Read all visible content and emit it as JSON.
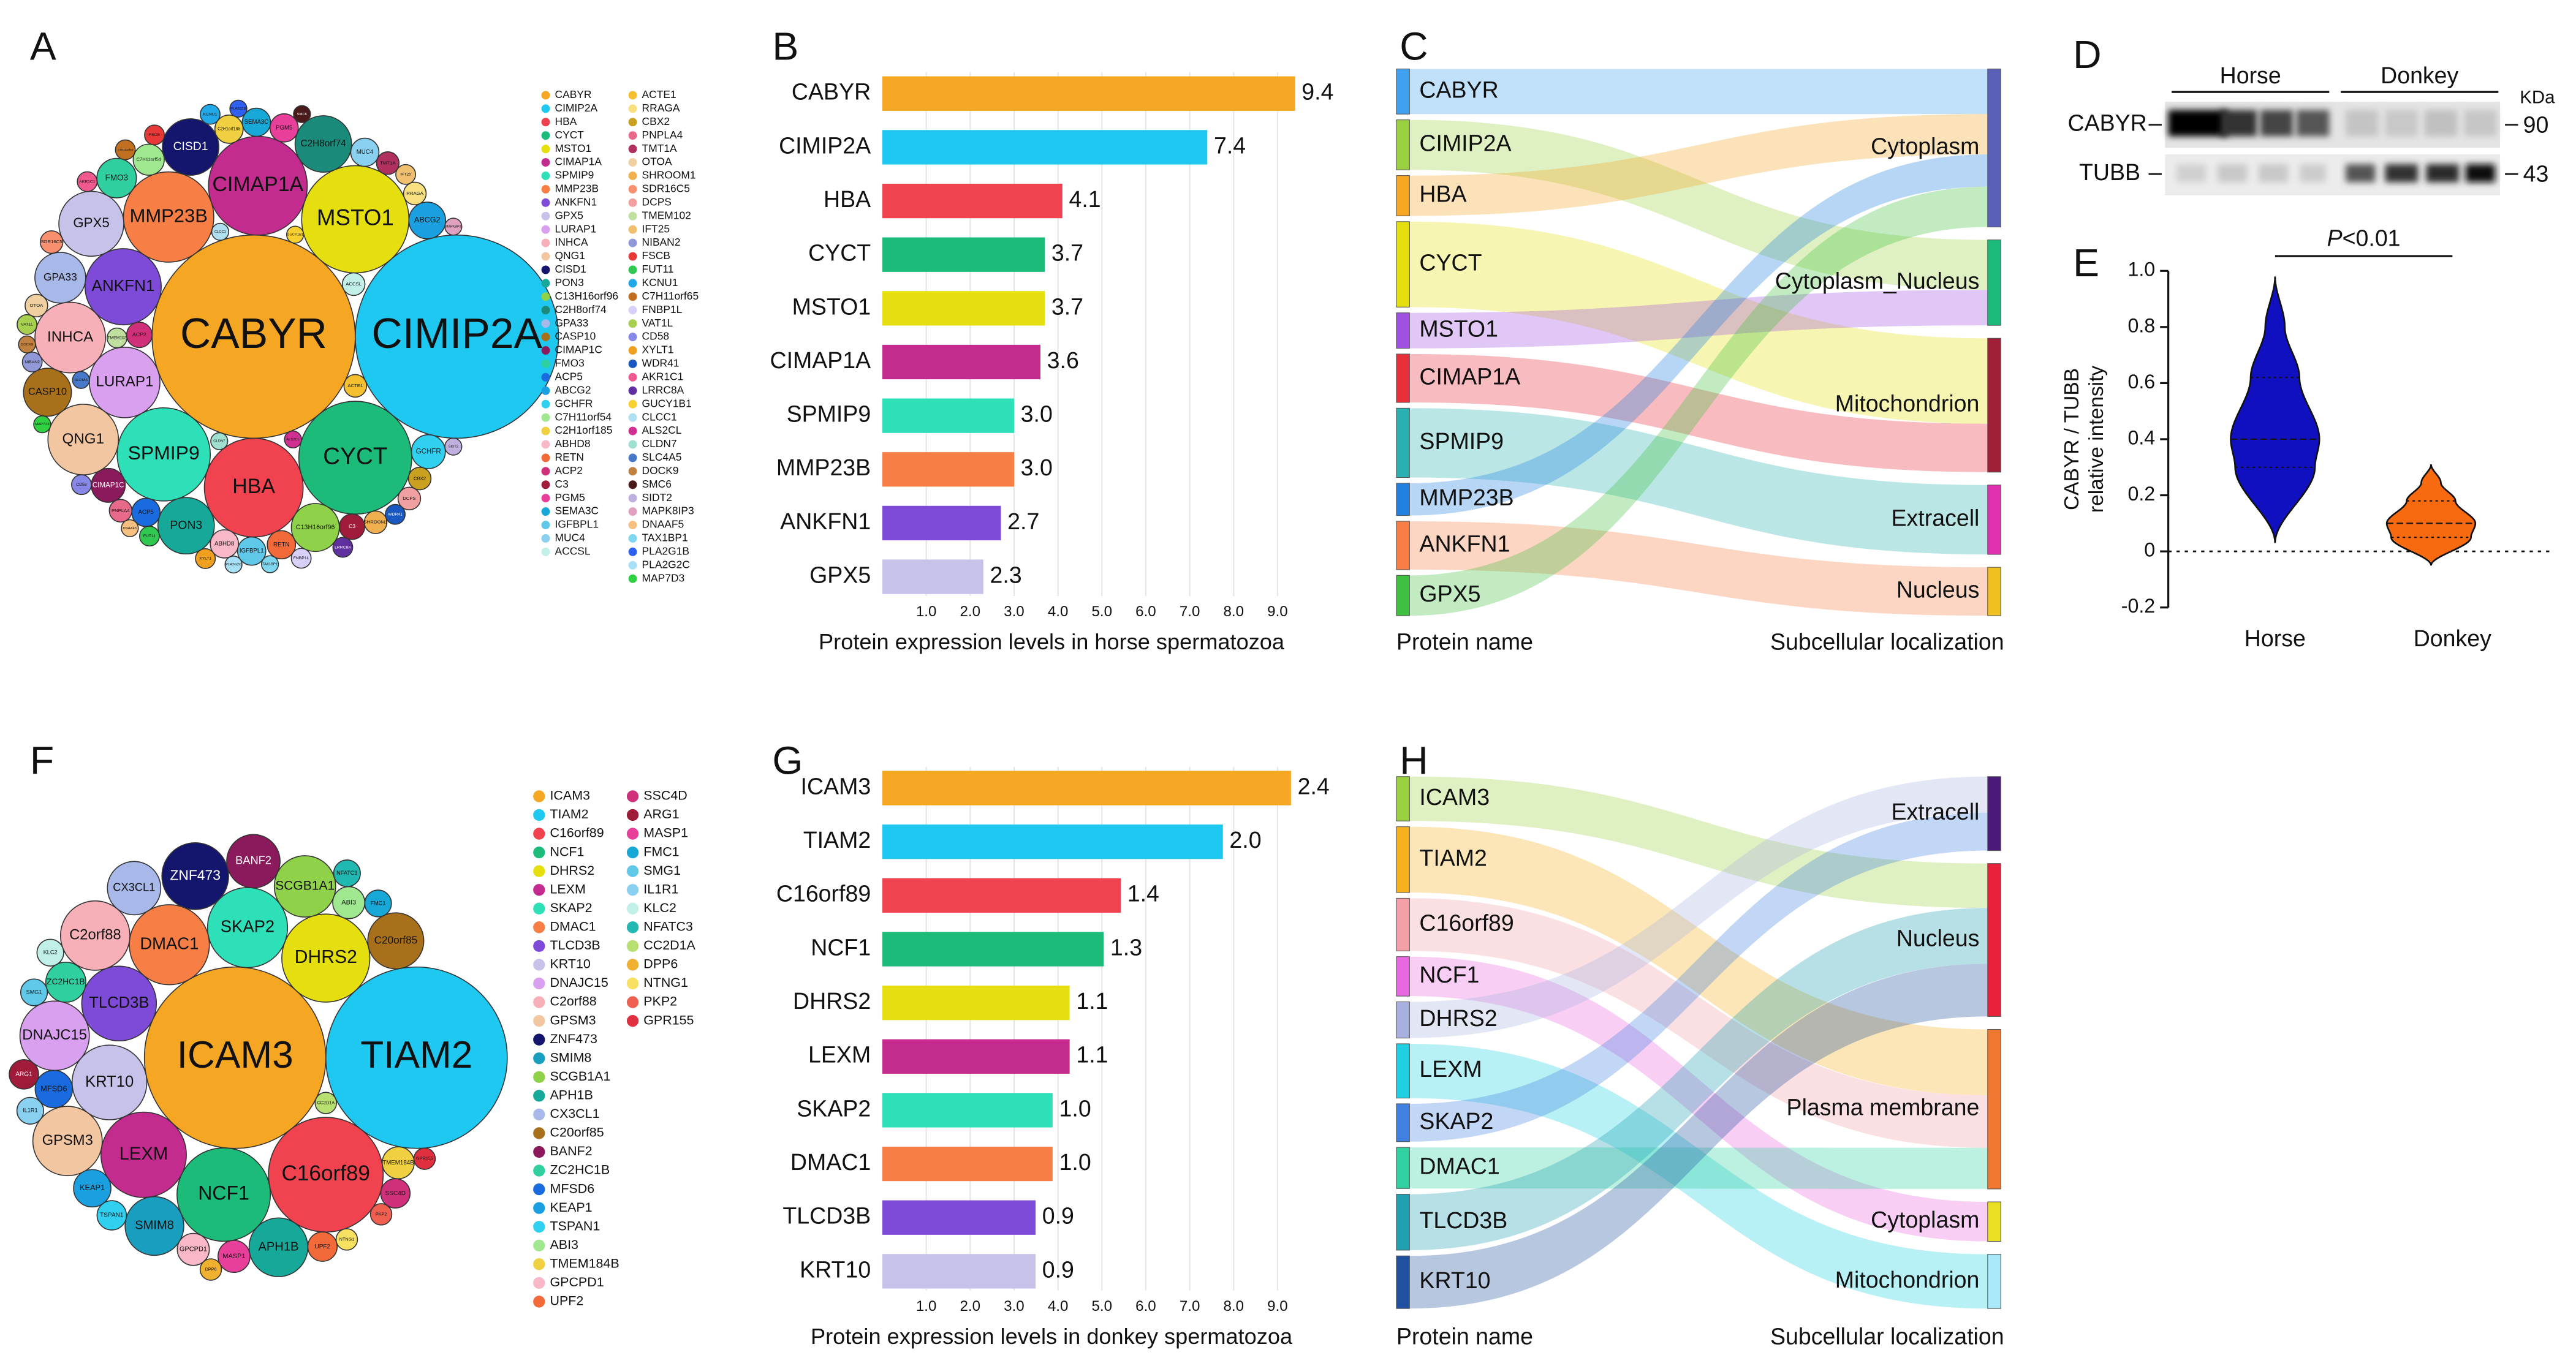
{
  "chart_data": [
    {
      "type": "bubble",
      "label": "A",
      "columns": [
        {
          "labels": [
            "CABYR",
            "CIMIP2A",
            "HBA",
            "CYCT",
            "MSTO1",
            "CIMAP1A",
            "SPMIP9",
            "MMP23B",
            "ANKFN1",
            "GPX5",
            "LURAP1",
            "INHCA",
            "QNG1",
            "CISD1",
            "PON3",
            "C13H16orf96",
            "C2H8orf74",
            "GPA33",
            "CASP10",
            "CIMAP1C",
            "FMO3",
            "ACP5",
            "ABCG2",
            "GCHFR",
            "C7H11orf54",
            "C2H1orf185",
            "ABHD8",
            "RETN",
            "ACP2",
            "C3",
            "PGM5",
            "SEMA3C",
            "IGFBPL1",
            "MUC4",
            "ACCSL"
          ],
          "colors": [
            "#f5a623",
            "#1ec8f0",
            "#f0434f",
            "#1dbb7a",
            "#e5df10",
            "#c42b8e",
            "#2de0b8",
            "#f77e45",
            "#7e4ad8",
            "#c7c2ea",
            "#d9a0f0",
            "#f7b0b8",
            "#f2c6a0",
            "#14166e",
            "#16a99a",
            "#8fd24a",
            "#1a8a7a",
            "#a8b8e8",
            "#a8701a",
            "#8a1a5c",
            "#2fcfa0",
            "#1a6ae0",
            "#1aa0e0",
            "#30d0f0",
            "#a0e890",
            "#f0d040",
            "#f8b8c8",
            "#f26a3a",
            "#d0307a",
            "#a01a3a",
            "#e8409a",
            "#18a8d8",
            "#60c8e8",
            "#8ad0f0",
            "#c0f0e8"
          ],
          "sizes": [
            72,
            72,
            35,
            40,
            38,
            35,
            33,
            32,
            27,
            23,
            25,
            25,
            25,
            20,
            20,
            17,
            20,
            18,
            17,
            12,
            14,
            10,
            13,
            12,
            11,
            10,
            10,
            10,
            9,
            9,
            10,
            10,
            10,
            10,
            8
          ]
        },
        {
          "labels": [
            "ACTE1",
            "RRAGA",
            "CBX2",
            "PNPLA4",
            "TMT1A",
            "OTOA",
            "SHROOM1",
            "SDR16C5",
            "DCPS",
            "TMEM102",
            "IFT25",
            "NIBAN2",
            "FSCB",
            "FUT11",
            "KCNU1",
            "C7H11orf65",
            "FNBP1L",
            "VAT1L",
            "CD58",
            "XYLT1",
            "WDR41",
            "AKR1C1",
            "LRRC8A",
            "GUCY1B1",
            "CLCC1",
            "ALS2CL",
            "CLDN7",
            "SLC4A5",
            "DOCK9",
            "SMC6",
            "SIDT2",
            "MAPK8IP3",
            "DNAAF5",
            "TAX1BP1",
            "PLA2G1B",
            "PLA2G2C",
            "MAP7D3"
          ],
          "colors": [
            "#f5c030",
            "#f8e080",
            "#c9a020",
            "#e86a8a",
            "#b03060",
            "#f0d0a0",
            "#f0b050",
            "#f89070",
            "#f0a0a0",
            "#c0e0a0",
            "#f0c070",
            "#9098d8",
            "#e83838",
            "#30c850",
            "#20a8e8",
            "#c07020",
            "#d8d0f8",
            "#a8d050",
            "#8888e8",
            "#f0a020",
            "#1858c0",
            "#f05890",
            "#6030a0",
            "#f8d030",
            "#b0e0f0",
            "#d03090",
            "#a0e0d0",
            "#4878c8",
            "#c08040",
            "#4a1a1a",
            "#c0b0e0",
            "#e0a0c0",
            "#f8c080",
            "#80d8f0",
            "#3060f0",
            "#a8e0f8",
            "#30d040"
          ],
          "sizes": [
            8,
            8,
            8,
            8,
            8,
            8,
            8,
            8,
            8,
            7,
            7,
            7,
            7,
            7,
            7,
            7,
            7,
            7,
            7,
            7,
            7,
            7,
            7,
            6,
            6,
            6,
            6,
            6,
            6,
            6,
            6,
            6,
            6,
            6,
            6,
            6,
            6
          ]
        }
      ]
    },
    {
      "type": "bar",
      "label": "B",
      "categories": [
        "CABYR",
        "CIMIP2A",
        "HBA",
        "CYCT",
        "MSTO1",
        "CIMAP1A",
        "SPMIP9",
        "MMP23B",
        "ANKFN1",
        "GPX5"
      ],
      "values": [
        9.4,
        7.4,
        4.1,
        3.7,
        3.7,
        3.6,
        3.0,
        3.0,
        2.7,
        2.3
      ],
      "value_labels": [
        "9.4",
        "7.4",
        "4.1",
        "3.7",
        "3.7",
        "3.6",
        "3.0",
        "3.0",
        "2.7",
        "2.3"
      ],
      "colors": [
        "#f5a623",
        "#1ec8f0",
        "#f0434f",
        "#1dbb7a",
        "#e5df10",
        "#c42b8e",
        "#2de0b8",
        "#f77e45",
        "#7e4ad8",
        "#c7c2ea"
      ],
      "xlim": [
        0,
        9.5
      ],
      "xticks": [
        {
          "value": 1,
          "label": "1.0"
        },
        {
          "value": 2,
          "label": "2.0"
        },
        {
          "value": 3,
          "label": "3.0"
        },
        {
          "value": 4,
          "label": "4.0"
        },
        {
          "value": 5,
          "label": "5.0"
        },
        {
          "value": 6,
          "label": "6.0"
        },
        {
          "value": 7,
          "label": "7.0"
        },
        {
          "value": 8,
          "label": "8.0"
        },
        {
          "value": 9,
          "label": "9.0"
        }
      ],
      "xlabel": "Protein expression levels in horse spermatozoa",
      "grid": true
    },
    {
      "type": "sankey",
      "label": "C",
      "left_nodes": [
        "CABYR",
        "CIMIP2A",
        "HBA",
        "CYCT",
        "MSTO1",
        "CIMAP1A",
        "SPMIP9",
        "MMP23B",
        "ANKFN1",
        "GPX5"
      ],
      "left_colors": [
        "#3fa0f0",
        "#9ad040",
        "#f5a623",
        "#e5df10",
        "#a050e0",
        "#e8303a",
        "#2ab0b0",
        "#2080e0",
        "#f77e45",
        "#40c040"
      ],
      "targets": [
        "Cytoplasm",
        "Cytoplasm_Nucleus",
        "Cytoplasm",
        "Mitochondrion",
        "Cytoplasm_Nucleus",
        "Mitochondrion",
        "Extracell",
        "Cytoplasm",
        "Nucleus",
        "Cytoplasm"
      ],
      "values": [
        28,
        31,
        25,
        53,
        22,
        30,
        43,
        20,
        30,
        25
      ],
      "right_nodes": [
        "Cytoplasm",
        "Cytoplasm_Nucleus",
        "Mitochondrion",
        "Extracell",
        "Nucleus"
      ],
      "right_colors": [
        "#5a60b8",
        "#1dbb7a",
        "#a0203a",
        "#e030b0",
        "#f0c020"
      ],
      "left_title": "Protein name",
      "right_title": "Subcellular localization"
    },
    {
      "type": "blot",
      "label": "D",
      "lanes": [
        "Horse",
        "Donkey"
      ],
      "unit": "KDa",
      "rows": [
        "CABYR",
        "TUBB"
      ],
      "markers": [
        90,
        43
      ]
    },
    {
      "type": "violin",
      "label": "E",
      "ylabel": [
        "CABYR / TUBB",
        "relative intensity"
      ],
      "categories": [
        "Horse",
        "Donkey"
      ],
      "colors": [
        "#1010c0",
        "#f86a10"
      ],
      "min": [
        0.03,
        -0.05
      ],
      "q1": [
        0.3,
        0.05
      ],
      "median": [
        0.4,
        0.1
      ],
      "q3": [
        0.62,
        0.18
      ],
      "max": [
        0.98,
        0.31
      ],
      "annotation": "P<0.01",
      "ylim": [
        -0.2,
        1.0
      ],
      "yticks": [
        -0.2,
        0,
        0.2,
        0.4,
        0.6,
        0.8,
        {
          "value": 1,
          "label": "1.0"
        }
      ]
    },
    {
      "type": "bubble",
      "label": "F",
      "columns": [
        {
          "labels": [
            "ICAM3",
            "TIAM2",
            "C16orf89",
            "NCF1",
            "DHRS2",
            "LEXM",
            "SKAP2",
            "DMAC1",
            "TLCD3B",
            "KRT10",
            "DNAJC15",
            "C2orf88",
            "GPSM3",
            "ZNF473",
            "SMIM8",
            "SCGB1A1",
            "APH1B",
            "CX3CL1",
            "C20orf85",
            "BANF2",
            "ZC2HC1B",
            "MFSD6",
            "KEAP1",
            "TSPAN1",
            "ABI3",
            "TMEM184B",
            "GPCPD1",
            "UPF2"
          ],
          "colors": [
            "#f5a623",
            "#1ec8f0",
            "#f0434f",
            "#1dbb7a",
            "#e5df10",
            "#c42b8e",
            "#2de0b8",
            "#f77e45",
            "#7e4ad8",
            "#c7c2ea",
            "#d9a0f0",
            "#f7b0b8",
            "#f2c6a0",
            "#14166e",
            "#1a9ec0",
            "#8fd24a",
            "#16a99a",
            "#a8b8e8",
            "#a8701a",
            "#8a1a5c",
            "#2fcfa0",
            "#1a6ae0",
            "#1aa0e0",
            "#30d0f0",
            "#a0e890",
            "#f0d040",
            "#f8b8c8",
            "#f26a3a"
          ],
          "sizes": [
            68,
            68,
            43,
            35,
            33,
            32,
            30,
            30,
            28,
            28,
            26,
            26,
            26,
            25,
            22,
            23,
            22,
            20,
            21,
            20,
            15,
            14,
            14,
            11,
            12,
            12,
            12,
            11
          ]
        },
        {
          "labels": [
            "SSC4D",
            "ARG1",
            "MASP1",
            "FMC1",
            "SMG1",
            "IL1R1",
            "KLC2",
            "NFATC3",
            "CC2D1A",
            "DPP6",
            "NTNG1",
            "PKP2",
            "GPR155"
          ],
          "colors": [
            "#d0307a",
            "#a01a3a",
            "#e8409a",
            "#18a8d8",
            "#60c8e8",
            "#8ad0f0",
            "#c0f0e8",
            "#20b8b0",
            "#b8e070",
            "#f0b030",
            "#f8e060",
            "#f06050",
            "#e03040"
          ],
          "sizes": [
            11,
            11,
            12,
            10,
            10,
            10,
            10,
            10,
            8,
            8,
            8,
            8,
            8
          ]
        }
      ]
    },
    {
      "type": "bar",
      "label": "G",
      "categories": [
        "ICAM3",
        "TIAM2",
        "C16orf89",
        "NCF1",
        "DHRS2",
        "LEXM",
        "SKAP2",
        "DMAC1",
        "TLCD3B",
        "KRT10"
      ],
      "values": [
        2.4,
        2.0,
        1.4,
        1.3,
        1.1,
        1.1,
        1.0,
        1.0,
        0.9,
        0.9
      ],
      "value_labels": [
        "2.4",
        "2.0",
        "1.4",
        "1.3",
        "1.1",
        "1.1",
        "1.0",
        "1.0",
        "0.9",
        "0.9"
      ],
      "colors": [
        "#f5a623",
        "#1ec8f0",
        "#f0434f",
        "#1dbb7a",
        "#e5df10",
        "#c42b8e",
        "#2de0b8",
        "#f77e45",
        "#7e4ad8",
        "#c7c2ea"
      ],
      "xlim": [
        0,
        2.45
      ],
      "x2lim": [
        0,
        9.5
      ],
      "x2ticks": [
        {
          "value": 1,
          "label": "1.0"
        },
        {
          "value": 2,
          "label": "2.0"
        },
        {
          "value": 3,
          "label": "3.0"
        },
        {
          "value": 4,
          "label": "4.0"
        },
        {
          "value": 5,
          "label": "5.0"
        },
        {
          "value": 6,
          "label": "6.0"
        },
        {
          "value": 7,
          "label": "7.0"
        },
        {
          "value": 8,
          "label": "8.0"
        },
        {
          "value": 9,
          "label": "9.0"
        }
      ],
      "xlabel": "Protein expression levels in donkey spermatozoa",
      "grid": true
    },
    {
      "type": "sankey",
      "label": "H",
      "left_nodes": [
        "ICAM3",
        "TIAM2",
        "C16orf89",
        "NCF1",
        "DHRS2",
        "LEXM",
        "SKAP2",
        "DMAC1",
        "TLCD3B",
        "KRT10"
      ],
      "left_colors": [
        "#9ad040",
        "#f5b020",
        "#f4a0a8",
        "#e868e0",
        "#a8b0e0",
        "#20d0e0",
        "#4080e0",
        "#30d0a0",
        "#20a0b0",
        "#2050a0"
      ],
      "targets": [
        "Nucleus",
        "Plasma membrane",
        "Plasma membrane",
        "Cytoplasm",
        "Extracell",
        "Mitochondrion",
        "Extracell",
        "Plasma membrane",
        "Nucleus",
        "Nucleus"
      ],
      "values": [
        27,
        40,
        32,
        24,
        22,
        33,
        23,
        25,
        34,
        32
      ],
      "right_nodes": [
        "Extracell",
        "Nucleus",
        "Plasma membrane",
        "Cytoplasm",
        "Mitochondrion"
      ],
      "right_colors": [
        "#4a1a7a",
        "#e8203a",
        "#f07830",
        "#e8e020",
        "#a8e8f8"
      ],
      "left_title": "Protein name",
      "right_title": "Subcellular localization"
    }
  ]
}
